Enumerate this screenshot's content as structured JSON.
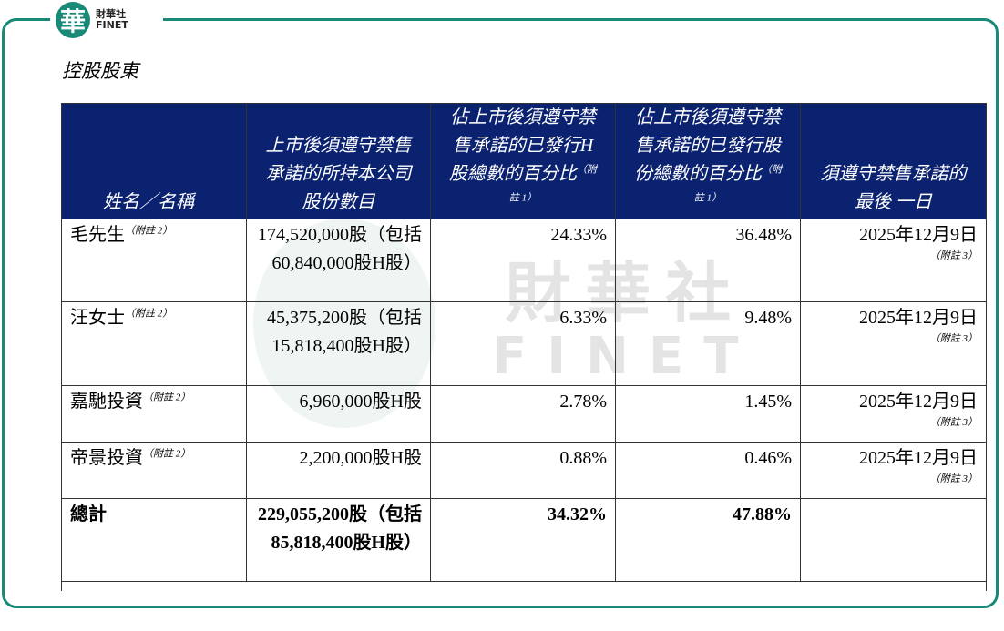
{
  "logo": {
    "mark": "華",
    "name": "財華社",
    "sub": "FINET"
  },
  "title": "控股股東",
  "watermark": {
    "name": "財華社",
    "sub": "FINET"
  },
  "table": {
    "headers": [
      {
        "text": "姓名／名稱"
      },
      {
        "text": "上市後須遵守禁售承諾的所持本公司股份數目"
      },
      {
        "text": "佔上市後須遵守禁售承諾的已發行H股總數的百分比",
        "note": "（附註 1）"
      },
      {
        "text": "佔上市後須遵守禁售承諾的已發行股份總數的百分比",
        "note": "（附註 1）"
      },
      {
        "text": "須遵守禁售承諾的最後 一日"
      }
    ],
    "rows": [
      [
        {
          "text": "毛先生",
          "note": "（附註 2）"
        },
        {
          "text": "174,520,000股（包括60,840,000股H股）"
        },
        {
          "text": "24.33%"
        },
        {
          "text": "36.48%"
        },
        {
          "text": "2025年12月9日",
          "note": "（附註 3）"
        }
      ],
      [
        {
          "text": "汪女士",
          "note": "（附註 2）"
        },
        {
          "text": "45,375,200股（包括15,818,400股H股）"
        },
        {
          "text": "6.33%"
        },
        {
          "text": "9.48%"
        },
        {
          "text": "2025年12月9日",
          "note": "（附註 3）"
        }
      ],
      [
        {
          "text": "嘉馳投資",
          "note": "（附註 2）"
        },
        {
          "text": "6,960,000股H股"
        },
        {
          "text": "2.78%"
        },
        {
          "text": "1.45%"
        },
        {
          "text": "2025年12月9日",
          "note": "（附註 3）"
        }
      ],
      [
        {
          "text": "帝景投資",
          "note": "（附註 2）"
        },
        {
          "text": "2,200,000股H股"
        },
        {
          "text": "0.88%"
        },
        {
          "text": "0.46%"
        },
        {
          "text": "2025年12月9日",
          "note": "（附註 3）"
        }
      ]
    ],
    "total": [
      {
        "text": "總計"
      },
      {
        "text": "229,055,200股（包括85,818,400股H股）"
      },
      {
        "text": "34.32%"
      },
      {
        "text": "47.88%"
      }
    ]
  }
}
